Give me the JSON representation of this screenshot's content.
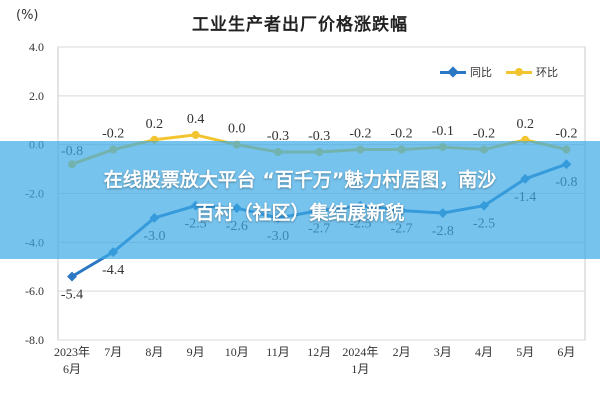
{
  "title": "工业生产者出厂价格涨跌幅",
  "y_unit": "(%)",
  "legend": {
    "yoy_label": "同比",
    "mom_label": "环比"
  },
  "colors": {
    "yoy": "#2a78c4",
    "mom": "#f2c530",
    "banner": "#3caae6"
  },
  "banner": {
    "line1": "在线股票放大平台 “百千万”魅力村居图，南沙",
    "line2": "百村（社区）集结展新貌"
  },
  "chart_data": {
    "type": "line",
    "title": "工业生产者出厂价格涨跌幅",
    "ylabel": "(%)",
    "xlabel": "",
    "ylim": [
      -8.0,
      4.0
    ],
    "yticks": [
      "4.0",
      "2.0",
      "0.0",
      "-2.0",
      "-4.0",
      "-6.0",
      "-8.0"
    ],
    "yticks_values": [
      4.0,
      2.0,
      0.0,
      -2.0,
      -4.0,
      -6.0,
      -8.0
    ],
    "categories": [
      [
        "2023年",
        "6月"
      ],
      [
        "7月"
      ],
      [
        "8月"
      ],
      [
        "9月"
      ],
      [
        "10月"
      ],
      [
        "11月"
      ],
      [
        "12月"
      ],
      [
        "2024年",
        "1月"
      ],
      [
        "2月"
      ],
      [
        "3月"
      ],
      [
        "4月"
      ],
      [
        "5月"
      ],
      [
        "6月"
      ]
    ],
    "grid": true,
    "legend_position": "top-right",
    "series": [
      {
        "name": "同比",
        "color": "#2a78c4",
        "marker": "diamond",
        "values": [
          -5.4,
          -4.4,
          -3.0,
          -2.5,
          -2.6,
          -3.0,
          -2.7,
          -2.5,
          -2.7,
          -2.8,
          -2.5,
          -1.4,
          -0.8
        ],
        "labels": [
          "-5.4",
          "-4.4",
          "-3.0",
          "-2.5",
          "-2.6",
          "-3.0",
          "-2.7",
          "-2.5",
          "-2.7",
          "-2.8",
          "-2.5",
          "-1.4",
          "-0.8"
        ]
      },
      {
        "name": "环比",
        "color": "#f2c530",
        "marker": "circle",
        "values": [
          -0.8,
          -0.2,
          0.2,
          0.4,
          0.0,
          -0.3,
          -0.3,
          -0.2,
          -0.2,
          -0.1,
          -0.2,
          0.2,
          -0.2
        ],
        "labels": [
          "-0.8",
          "-0.2",
          "0.2",
          "0.4",
          "0.0",
          "-0.3",
          "-0.3",
          "-0.2",
          "-0.2",
          "-0.1",
          "-0.2",
          "0.2",
          "-0.2"
        ]
      }
    ]
  }
}
